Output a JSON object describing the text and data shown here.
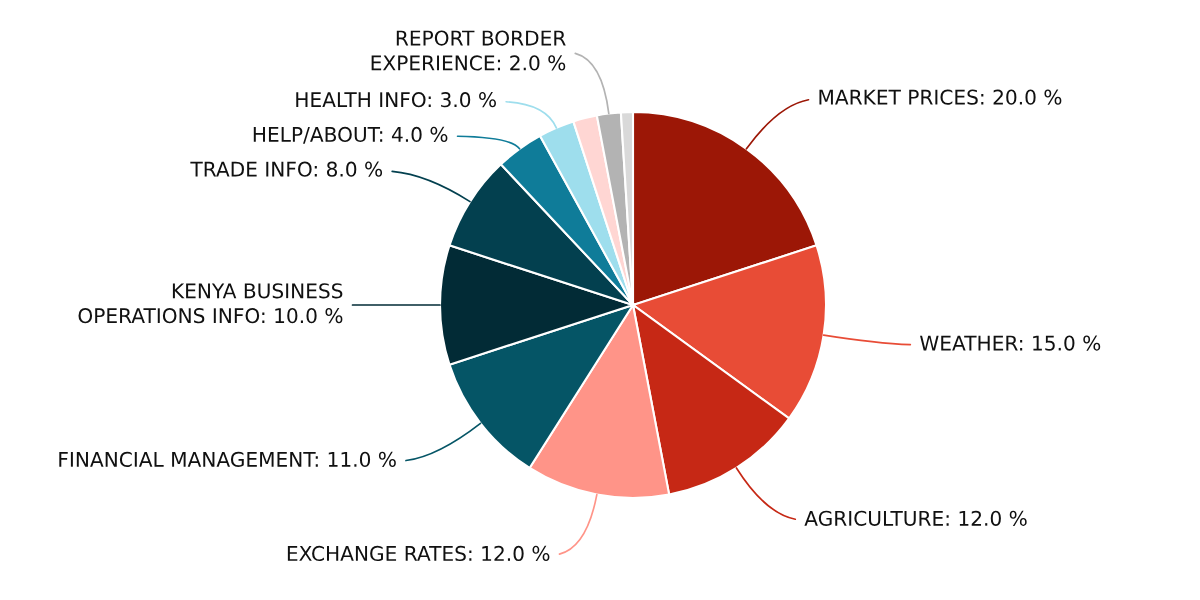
{
  "chart_data": {
    "type": "pie",
    "categories": [
      "MARKET PRICES",
      "WEATHER",
      "AGRICULTURE",
      "EXCHANGE RATES",
      "FINANCIAL MANAGEMENT",
      "KENYA BUSINESS OPERATIONS INFO",
      "TRADE INFO",
      "HELP/ABOUT",
      "HEALTH INFO",
      null,
      "REPORT BORDER EXPERIENCE",
      null
    ],
    "values": [
      20,
      15,
      12,
      12,
      11,
      10,
      8,
      4,
      3,
      2,
      2,
      1
    ],
    "colors": [
      "#9c1706",
      "#e84c36",
      "#c62815",
      "#ff9488",
      "#055566",
      "#022b36",
      "#03404f",
      "#0f7c99",
      "#9edeed",
      "#ffd6d3",
      "#b3b3b3",
      "#d9d9d9"
    ],
    "value_labels": [
      "20.0 %",
      "15.0 %",
      "12.0 %",
      "12.0 %",
      "11.0 %",
      "10.0 %",
      "8.0 %",
      "4.0 %",
      "3.0 %",
      null,
      "2.0 %",
      null
    ]
  }
}
